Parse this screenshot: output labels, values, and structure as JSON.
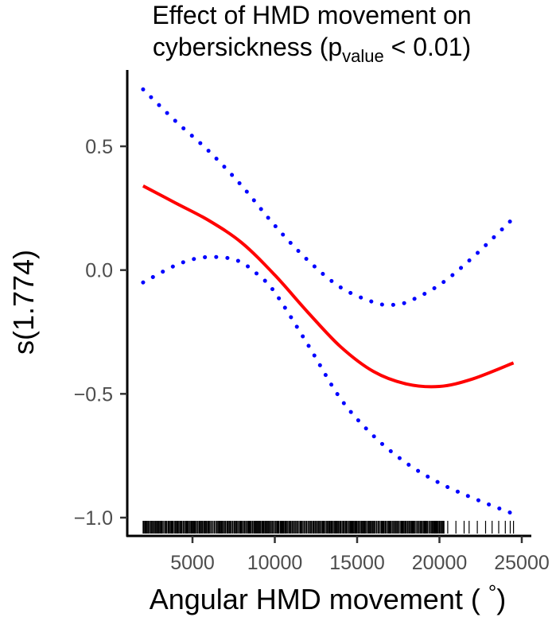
{
  "chart_data": {
    "type": "line",
    "title_line1": "Effect of HMD movement on",
    "title_line2_prefix": "cybersickness (p",
    "title_line2_subscript": "value",
    "title_line2_suffix": " < 0.01)",
    "xlabel_prefix": "Angular HMD movement ( ",
    "xlabel_degree": "°",
    "xlabel_suffix": ")",
    "ylabel": "s(1.774)",
    "xlim": [
      0,
      26000
    ],
    "ylim": [
      -1.05,
      0.75
    ],
    "x_ticks": [
      5000,
      10000,
      15000,
      20000,
      25000
    ],
    "x_tick_labels": [
      "5000",
      "10000",
      "15000",
      "20000",
      "25000"
    ],
    "y_ticks": [
      0.5,
      0.0,
      -0.5,
      -1.0
    ],
    "y_tick_labels": [
      "0.5",
      "0.0",
      "−0.5",
      "−1.0"
    ],
    "series": [
      {
        "role": "estimate",
        "color": "#ff0000",
        "style": "solid",
        "x": [
          2000,
          4000,
          6000,
          8000,
          10000,
          12000,
          14000,
          16000,
          18000,
          20000,
          22000,
          24500
        ],
        "y": [
          0.34,
          0.27,
          0.2,
          0.11,
          -0.02,
          -0.17,
          -0.31,
          -0.41,
          -0.46,
          -0.47,
          -0.44,
          -0.375
        ]
      },
      {
        "role": "upper-bound",
        "color": "#0000ff",
        "style": "dotted",
        "x": [
          2000,
          4000,
          6000,
          8000,
          10000,
          12000,
          14000,
          16000,
          17000,
          18000,
          20000,
          22000,
          24500
        ],
        "y": [
          0.73,
          0.6,
          0.48,
          0.34,
          0.18,
          0.04,
          -0.07,
          -0.13,
          -0.14,
          -0.13,
          -0.06,
          0.05,
          0.21
        ]
      },
      {
        "role": "lower-bound",
        "color": "#0000ff",
        "style": "dotted",
        "x": [
          2000,
          4000,
          5500,
          7000,
          8000,
          9000,
          10000,
          12000,
          14000,
          16000,
          18000,
          20000,
          22000,
          24500
        ],
        "y": [
          -0.05,
          0.02,
          0.05,
          0.05,
          0.03,
          -0.02,
          -0.09,
          -0.3,
          -0.52,
          -0.67,
          -0.78,
          -0.86,
          -0.92,
          -0.985
        ]
      }
    ],
    "rug": {
      "color": "#000000",
      "x_range": [
        2000,
        24500
      ],
      "sparse_right": [
        20500,
        21000,
        21500,
        21800,
        22300,
        22800,
        23200,
        23600,
        24000,
        24300,
        24500
      ]
    }
  }
}
